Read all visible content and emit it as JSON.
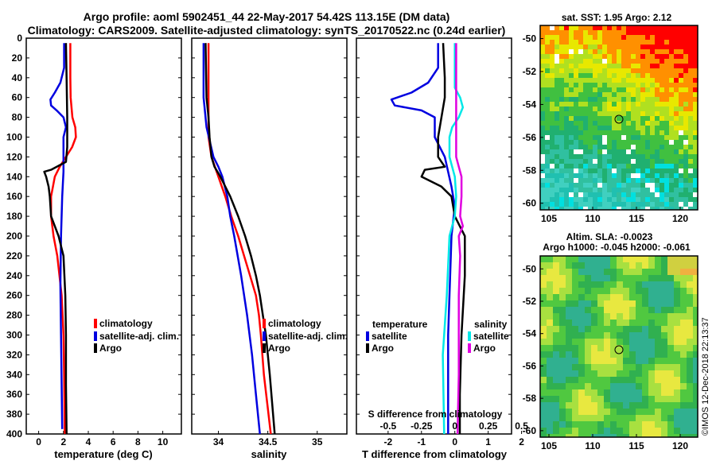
{
  "title": {
    "line1": "Argo profile: aoml 5902451_44 22-May-2017 54.42S 113.15E (DM data)",
    "line2": "Climatology: CARS2009. Satellite-adjusted climatology: synTS_20170522.nc (0.24d earlier)"
  },
  "map_sst": {
    "title": "sat. SST: 1.95 Argo: 2.12",
    "x_ticks": [
      "105",
      "110",
      "115",
      "120"
    ],
    "y_ticks": [
      "-50",
      "-52",
      "-54",
      "-56",
      "-58",
      "-60"
    ]
  },
  "map_sla": {
    "title1": "Altim. SLA: -0.0023",
    "title2": "Argo h1000: -0.045 h2000: -0.061",
    "x_ticks": [
      "105",
      "110",
      "115",
      "120"
    ],
    "y_ticks": [
      "-50",
      "-52",
      "-54",
      "-56",
      "-58",
      "-60"
    ]
  },
  "credit": "©IMOS 12-Dec-2018 22:13:37",
  "depth_ticks": [
    "0",
    "20",
    "40",
    "60",
    "80",
    "100",
    "120",
    "140",
    "160",
    "180",
    "200",
    "220",
    "240",
    "260",
    "280",
    "300",
    "320",
    "340",
    "360",
    "380",
    "400"
  ],
  "colors": {
    "climatology": "#ff0000",
    "satellite": "#0000e0",
    "argo": "#000000",
    "sat_salinity": "#00e8e8",
    "argo_salinity": "#e000e0"
  },
  "chart_data": [
    {
      "type": "line",
      "xlabel": "temperature (deg C)",
      "x_ticks": [
        "0",
        "2",
        "4",
        "6",
        "8",
        "10"
      ],
      "xlim": [
        -1,
        11.5
      ],
      "ylim": [
        0,
        400
      ],
      "y_axis": "depth (inverted)",
      "legend": [
        "climatology",
        "satellite-adj. clim.",
        "Argo"
      ],
      "series": [
        {
          "name": "climatology",
          "depth": [
            5,
            20,
            40,
            60,
            80,
            90,
            100,
            110,
            120,
            130,
            140,
            160,
            180,
            200,
            220,
            260,
            300,
            340,
            400
          ],
          "values": [
            2.55,
            2.55,
            2.55,
            2.58,
            2.72,
            2.95,
            3.0,
            2.7,
            2.2,
            1.7,
            1.3,
            1.0,
            1.0,
            1.2,
            1.5,
            1.85,
            2.0,
            2.05,
            2.1
          ]
        },
        {
          "name": "satellite-adj. clim.",
          "depth": [
            5,
            30,
            45,
            55,
            62,
            68,
            73,
            80,
            90,
            100,
            120,
            135,
            160,
            200,
            250,
            300,
            350,
            395
          ],
          "values": [
            2.05,
            2.05,
            1.75,
            1.3,
            0.95,
            1.0,
            1.45,
            2.0,
            2.2,
            2.0,
            2.0,
            2.0,
            1.9,
            1.8,
            1.75,
            1.8,
            1.85,
            1.9
          ]
        },
        {
          "name": "Argo",
          "depth": [
            5,
            40,
            80,
            110,
            125,
            133,
            135,
            140,
            150,
            160,
            180,
            200,
            220,
            260,
            300,
            350,
            400
          ],
          "values": [
            2.2,
            2.25,
            2.3,
            2.3,
            2.2,
            1.0,
            0.45,
            0.6,
            0.8,
            0.9,
            1.0,
            1.6,
            2.0,
            2.15,
            2.2,
            2.2,
            2.25
          ]
        }
      ]
    },
    {
      "type": "line",
      "xlabel": "salinity",
      "x_ticks": [
        "34",
        "34.5",
        "35"
      ],
      "xlim": [
        33.73,
        35.3
      ],
      "ylim": [
        0,
        400
      ],
      "y_axis": "depth (inverted)",
      "legend": [
        "climatology",
        "satellite-adj. clim.",
        "Argo"
      ],
      "series": [
        {
          "name": "climatology",
          "depth": [
            5,
            100,
            120,
            140,
            160,
            180,
            200,
            220,
            240,
            260,
            280,
            300,
            340,
            400
          ],
          "values": [
            33.9,
            33.9,
            33.93,
            34.0,
            34.07,
            34.13,
            34.2,
            34.26,
            34.32,
            34.38,
            34.41,
            34.43,
            34.46,
            34.53
          ]
        },
        {
          "name": "satellite-adj. clim.",
          "depth": [
            5,
            60,
            90,
            120,
            130,
            140,
            160,
            180,
            200,
            240,
            280,
            320,
            360,
            400
          ],
          "values": [
            33.85,
            33.85,
            33.88,
            33.95,
            34.0,
            34.04,
            34.09,
            34.12,
            34.16,
            34.23,
            34.29,
            34.34,
            34.38,
            34.42
          ]
        },
        {
          "name": "Argo",
          "depth": [
            5,
            60,
            80,
            100,
            120,
            130,
            140,
            160,
            180,
            200,
            220,
            240,
            260,
            280,
            300,
            340,
            400
          ],
          "values": [
            33.87,
            33.88,
            33.9,
            33.91,
            33.93,
            33.96,
            34.02,
            34.12,
            34.2,
            34.27,
            34.33,
            34.38,
            34.42,
            34.45,
            34.48,
            34.52,
            34.57
          ]
        }
      ]
    },
    {
      "type": "line",
      "xlabel": "T difference from climatology",
      "secondary_xlabel": "S difference from climatology",
      "x_ticks": [
        "-2",
        "-1",
        "0",
        "1",
        "2"
      ],
      "secondary_x_ticks": [
        "-0.5",
        "-0.25",
        "0",
        "0.25",
        "0.5"
      ],
      "xlim": [
        -2.95,
        1.7
      ],
      "ylim": [
        0,
        400
      ],
      "y_axis": "depth (inverted)",
      "legend_temperature": [
        "satellite",
        "Argo"
      ],
      "legend_salinity": [
        "satellite",
        "Argo"
      ],
      "legend_temperature_title": "temperature",
      "legend_salinity_title": "salinity",
      "series": [
        {
          "name": "temperature satellite",
          "depth": [
            5,
            30,
            45,
            55,
            62,
            68,
            73,
            80,
            90,
            100,
            120,
            135,
            150,
            170,
            200,
            250,
            300,
            350,
            400
          ],
          "values": [
            -0.5,
            -0.5,
            -0.8,
            -1.3,
            -1.9,
            -1.8,
            -1.0,
            -0.6,
            -0.6,
            -0.6,
            -0.3,
            -0.2,
            -0.1,
            0.0,
            -0.1,
            -0.15,
            -0.2,
            -0.2,
            -0.2
          ]
        },
        {
          "name": "temperature Argo",
          "depth": [
            5,
            40,
            60,
            80,
            100,
            120,
            130,
            133,
            140,
            150,
            160,
            180,
            200,
            240,
            300,
            360,
            400
          ],
          "values": [
            -0.35,
            -0.3,
            -0.3,
            -0.4,
            -0.5,
            -0.5,
            -0.3,
            -0.9,
            -1.0,
            -0.4,
            -0.1,
            0.0,
            0.3,
            0.3,
            0.2,
            0.15,
            0.15
          ]
        },
        {
          "name": "salinity satellite",
          "depth": [
            5,
            50,
            60,
            70,
            80,
            90,
            100,
            120,
            140,
            160,
            180,
            200,
            260,
            320,
            400
          ],
          "values": [
            0.0,
            0.0,
            0.04,
            0.06,
            0.03,
            -0.02,
            -0.04,
            -0.04,
            0.0,
            0.01,
            0.0,
            -0.04,
            -0.06,
            -0.09,
            -0.08
          ]
        },
        {
          "name": "salinity Argo",
          "depth": [
            5,
            60,
            100,
            120,
            130,
            140,
            160,
            180,
            190,
            200,
            220,
            260,
            300,
            340,
            400
          ],
          "values": [
            0.01,
            0.01,
            0.01,
            0.01,
            0.03,
            0.05,
            0.05,
            0.04,
            0.06,
            0.03,
            0.04,
            0.03,
            0.03,
            0.03,
            0.02
          ]
        }
      ]
    }
  ]
}
